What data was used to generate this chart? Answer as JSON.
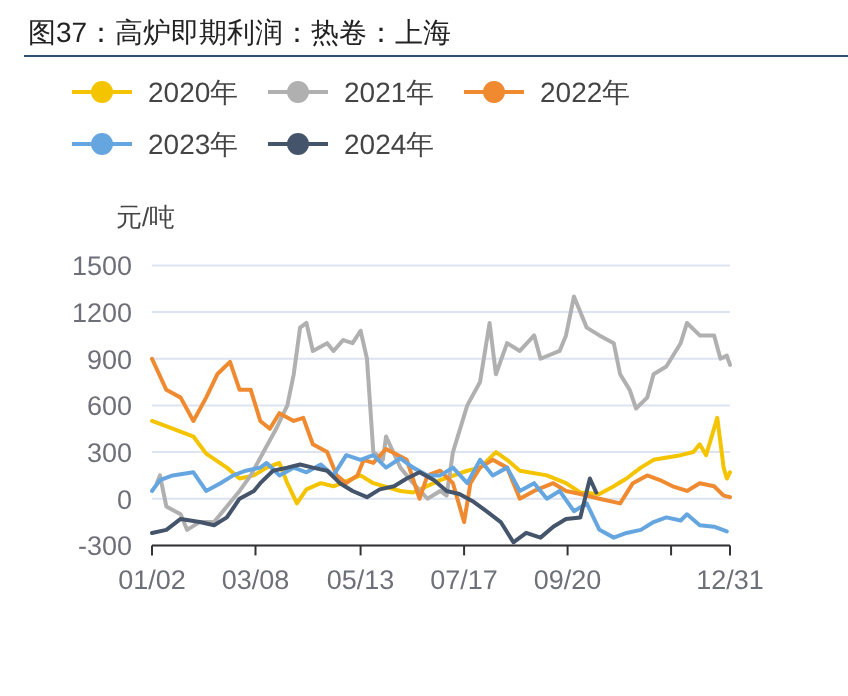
{
  "chart_data": {
    "type": "line",
    "title": "图37：高炉即期利润：热卷：上海",
    "ylabel": "元/吨",
    "xlim": [
      "--01-02",
      "--12-31"
    ],
    "xticks": [
      {
        "value": "--01-02",
        "label": "01/02"
      },
      {
        "value": "--03-08",
        "label": "03/08"
      },
      {
        "value": "--05-13",
        "label": "05/13"
      },
      {
        "value": "--07-17",
        "label": "07/17"
      },
      {
        "value": "--09-20",
        "label": "09/20"
      },
      {
        "value": "--11-24",
        "label": null
      },
      {
        "value": "--12-31",
        "label": "12/31"
      }
    ],
    "ylim": [
      -300,
      1500
    ],
    "yticks": [
      -300,
      0,
      300,
      600,
      900,
      1200,
      1500
    ],
    "grid": "y",
    "legend": "top",
    "line_style": "solid",
    "series": [
      {
        "name": "2020年",
        "color": "#f5c400",
        "x": [
          "--01-02",
          "--01-15",
          "--01-28",
          "--02-05",
          "--02-18",
          "--02-26",
          "--03-07",
          "--03-15",
          "--03-23",
          "--03-28",
          "--04-03",
          "--04-09",
          "--04-18",
          "--04-26",
          "--05-13",
          "--05-21",
          "--06-07",
          "--06-15",
          "--07-02",
          "--07-19",
          "--07-27",
          "--08-06",
          "--08-13",
          "--08-21",
          "--09-07",
          "--09-19",
          "--09-28",
          "--10-10",
          "--10-19",
          "--10-27",
          "--11-05",
          "--11-13",
          "--11-30",
          "--12-08",
          "--12-12",
          "--12-16",
          "--12-23",
          "--12-27",
          "--12-29",
          "--12-31"
        ],
        "values": [
          500,
          450,
          400,
          290,
          200,
          130,
          150,
          200,
          230,
          100,
          -30,
          60,
          100,
          80,
          150,
          100,
          50,
          40,
          120,
          180,
          200,
          300,
          250,
          180,
          150,
          100,
          40,
          30,
          80,
          130,
          200,
          250,
          280,
          300,
          350,
          280,
          520,
          200,
          130,
          170
        ]
      },
      {
        "name": "2021年",
        "color": "#b0b0b0",
        "x": [
          "--01-05",
          "--01-07",
          "--01-11",
          "--01-20",
          "--01-24",
          "--02-01",
          "--02-10",
          "--02-18",
          "--02-26",
          "--03-05",
          "--03-13",
          "--03-21",
          "--03-28",
          "--04-01",
          "--04-05",
          "--04-09",
          "--04-13",
          "--04-22",
          "--04-26",
          "--05-02",
          "--05-08",
          "--05-13",
          "--05-17",
          "--05-21",
          "--05-27",
          "--05-29",
          "--06-07",
          "--06-15",
          "--06-24",
          "--07-02",
          "--07-06",
          "--07-10",
          "--07-19",
          "--07-27",
          "--08-02",
          "--08-06",
          "--08-13",
          "--08-21",
          "--08-30",
          "--09-03",
          "--09-15",
          "--09-19",
          "--09-24",
          "--09-28",
          "--10-02",
          "--10-10",
          "--10-19",
          "--10-23",
          "--10-29",
          "--11-02",
          "--11-09",
          "--11-13",
          "--11-21",
          "--11-30",
          "--12-04",
          "--12-12",
          "--12-21",
          "--12-25",
          "--12-29",
          "--12-31"
        ],
        "values": [
          100,
          150,
          -50,
          -100,
          -200,
          -150,
          -150,
          -50,
          50,
          150,
          300,
          450,
          600,
          800,
          1100,
          1130,
          950,
          1000,
          950,
          1020,
          1000,
          1080,
          900,
          300,
          250,
          400,
          200,
          100,
          0,
          50,
          20,
          300,
          600,
          750,
          1130,
          800,
          1000,
          950,
          1050,
          900,
          950,
          1050,
          1300,
          1200,
          1100,
          1050,
          1000,
          800,
          700,
          580,
          650,
          800,
          850,
          1000,
          1130,
          1050,
          1050,
          900,
          920,
          860
        ]
      },
      {
        "name": "2022年",
        "color": "#f08a30",
        "x": [
          "--01-02",
          "--01-11",
          "--01-20",
          "--01-28",
          "--02-05",
          "--02-12",
          "--02-20",
          "--02-26",
          "--03-05",
          "--03-11",
          "--03-17",
          "--03-23",
          "--04-01",
          "--04-07",
          "--04-13",
          "--04-22",
          "--04-28",
          "--05-04",
          "--05-11",
          "--05-15",
          "--05-21",
          "--05-29",
          "--06-11",
          "--06-19",
          "--06-24",
          "--07-02",
          "--07-10",
          "--07-17",
          "--07-21",
          "--07-27",
          "--08-04",
          "--08-13",
          "--08-21",
          "--08-30",
          "--09-11",
          "--09-19",
          "--09-28",
          "--10-10",
          "--10-23",
          "--10-31",
          "--11-09",
          "--11-17",
          "--11-25",
          "--12-04",
          "--12-12",
          "--12-21",
          "--12-27",
          "--12-31"
        ],
        "values": [
          900,
          700,
          650,
          500,
          650,
          800,
          880,
          700,
          700,
          500,
          450,
          550,
          500,
          520,
          350,
          300,
          150,
          100,
          150,
          250,
          230,
          320,
          250,
          0,
          150,
          180,
          100,
          -150,
          100,
          200,
          250,
          200,
          0,
          50,
          100,
          50,
          30,
          0,
          -30,
          100,
          150,
          120,
          80,
          50,
          100,
          80,
          20,
          10
        ]
      },
      {
        "name": "2023年",
        "color": "#66a6e0",
        "x": [
          "--01-02",
          "--01-07",
          "--01-15",
          "--01-28",
          "--02-05",
          "--02-14",
          "--02-22",
          "--03-02",
          "--03-11",
          "--03-15",
          "--03-23",
          "--04-01",
          "--04-09",
          "--04-18",
          "--04-26",
          "--05-04",
          "--05-13",
          "--05-21",
          "--05-29",
          "--06-07",
          "--06-15",
          "--06-24",
          "--07-02",
          "--07-10",
          "--07-19",
          "--07-27",
          "--08-04",
          "--08-13",
          "--08-21",
          "--08-30",
          "--09-07",
          "--09-15",
          "--09-24",
          "--10-02",
          "--10-10",
          "--10-19",
          "--10-27",
          "--11-05",
          "--11-13",
          "--11-21",
          "--11-30",
          "--12-04",
          "--12-12",
          "--12-21",
          "--12-29"
        ],
        "values": [
          50,
          120,
          150,
          170,
          50,
          100,
          150,
          180,
          200,
          230,
          150,
          200,
          170,
          220,
          150,
          280,
          250,
          280,
          200,
          260,
          200,
          150,
          150,
          200,
          100,
          250,
          150,
          200,
          50,
          100,
          0,
          50,
          -80,
          -30,
          -200,
          -250,
          -220,
          -200,
          -150,
          -120,
          -140,
          -100,
          -170,
          -180,
          -210
        ]
      },
      {
        "name": "2024年",
        "color": "#44546a",
        "x": [
          "--01-02",
          "--01-11",
          "--01-20",
          "--02-01",
          "--02-10",
          "--02-18",
          "--02-26",
          "--03-07",
          "--03-11",
          "--03-19",
          "--03-28",
          "--04-05",
          "--04-13",
          "--04-22",
          "--04-30",
          "--05-08",
          "--05-17",
          "--05-25",
          "--06-03",
          "--06-11",
          "--06-19",
          "--06-28",
          "--07-06",
          "--07-14",
          "--07-23",
          "--07-31",
          "--08-09",
          "--08-17",
          "--08-25",
          "--09-03",
          "--09-11",
          "--09-19",
          "--09-28",
          "--10-04",
          "--10-08"
        ],
        "values": [
          -220,
          -200,
          -130,
          -150,
          -170,
          -120,
          0,
          50,
          100,
          180,
          200,
          220,
          200,
          180,
          100,
          50,
          10,
          60,
          80,
          130,
          170,
          120,
          50,
          30,
          -20,
          -80,
          -150,
          -280,
          -220,
          -250,
          -180,
          -130,
          -120,
          130,
          40
        ]
      }
    ]
  }
}
